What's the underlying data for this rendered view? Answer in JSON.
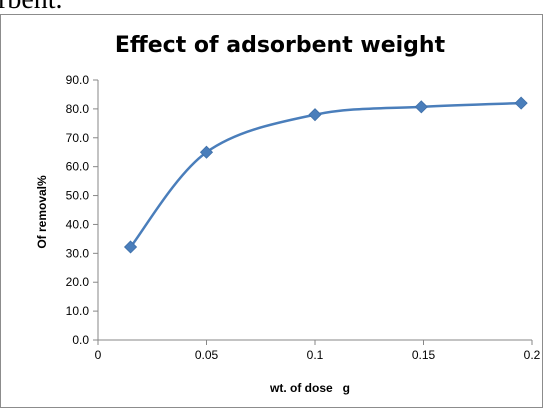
{
  "header": {
    "text": "rbent."
  },
  "chart_data": {
    "type": "line",
    "title": "Effect of adsorbent weight",
    "xlabel": "wt. of dose   g",
    "ylabel": "Of removal%",
    "xlim": [
      0,
      0.2
    ],
    "ylim": [
      0,
      90
    ],
    "x_ticks": [
      "0",
      "0.05",
      "0.1",
      "0.15",
      "0.2"
    ],
    "y_ticks": [
      "0.0",
      "10.0",
      "20.0",
      "30.0",
      "40.0",
      "50.0",
      "60.0",
      "70.0",
      "80.0",
      "90.0"
    ],
    "series": [
      {
        "x": [
          0.015,
          0.05,
          0.1,
          0.149,
          0.195
        ],
        "values": [
          32.2,
          65.0,
          78.0,
          80.7,
          82.0
        ]
      }
    ],
    "smooth": true,
    "marker": "diamond",
    "grid": false,
    "legend": "none",
    "colors": {
      "line": "#4a7ebb",
      "marker": "#4a7ebb",
      "axis": "#878787",
      "frame": "#8c8c8c"
    }
  }
}
